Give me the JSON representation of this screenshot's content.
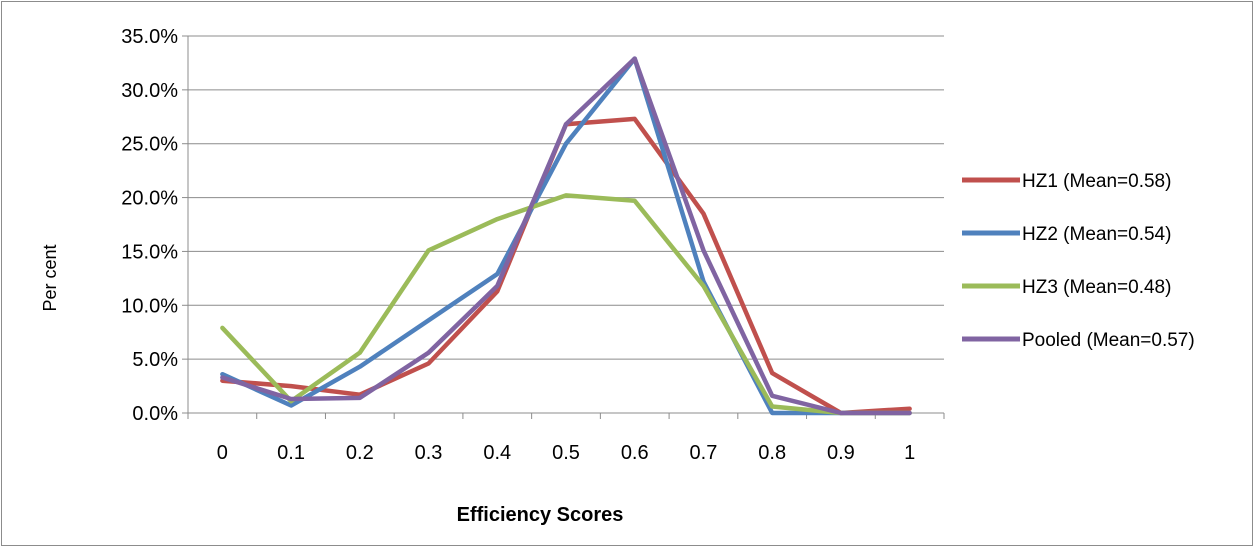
{
  "chart_data": {
    "type": "line",
    "title": "",
    "xlabel": "Efficiency Scores",
    "ylabel": "Per cent",
    "x": [
      "0",
      "0.1",
      "0.2",
      "0.3",
      "0.4",
      "0.5",
      "0.6",
      "0.7",
      "0.8",
      "0.9",
      "1"
    ],
    "y_ticks": [
      "0.0%",
      "5.0%",
      "10.0%",
      "15.0%",
      "20.0%",
      "25.0%",
      "30.0%",
      "35.0%"
    ],
    "ylim": [
      0,
      35
    ],
    "grid": "horizontal",
    "legend_position": "right",
    "series": [
      {
        "name": "HZ1 (Mean=0.58)",
        "color": "#c0504d",
        "values": [
          3.0,
          2.5,
          1.7,
          4.6,
          11.3,
          26.8,
          27.3,
          18.5,
          3.7,
          0.0,
          0.4
        ]
      },
      {
        "name": "HZ2  (Mean=0.54)",
        "color": "#4f81bd",
        "values": [
          3.6,
          0.7,
          4.3,
          8.6,
          12.9,
          25.0,
          32.9,
          12.2,
          0.0,
          0.0,
          0.0
        ]
      },
      {
        "name": "HZ3 (Mean=0.48)",
        "color": "#9bbb59",
        "values": [
          7.9,
          1.1,
          5.6,
          15.1,
          18.0,
          20.2,
          19.7,
          11.8,
          0.6,
          0.0,
          0.0
        ]
      },
      {
        "name": "Pooled  (Mean=0.57)",
        "color": "#8064a2",
        "values": [
          3.3,
          1.3,
          1.4,
          5.6,
          11.8,
          26.8,
          32.9,
          15.1,
          1.6,
          0.0,
          0.0
        ]
      }
    ]
  }
}
